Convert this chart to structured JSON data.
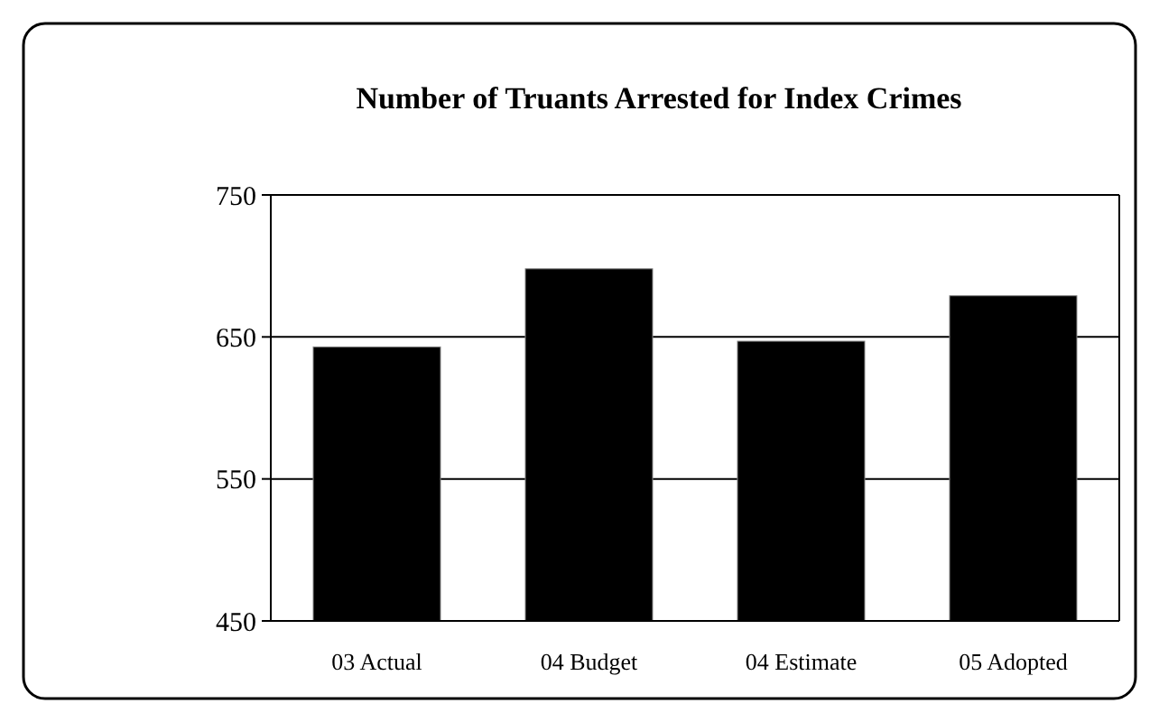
{
  "chart_data": {
    "type": "bar",
    "title": "Number of Truants Arrested for Index Crimes",
    "categories": [
      "03 Actual",
      "04 Budget",
      "04 Estimate",
      "05 Adopted"
    ],
    "values": [
      643,
      698,
      647,
      679
    ],
    "color": "#000000",
    "ylim": [
      450,
      750
    ],
    "yticks": [
      450,
      550,
      650,
      750
    ],
    "grid": "y"
  }
}
